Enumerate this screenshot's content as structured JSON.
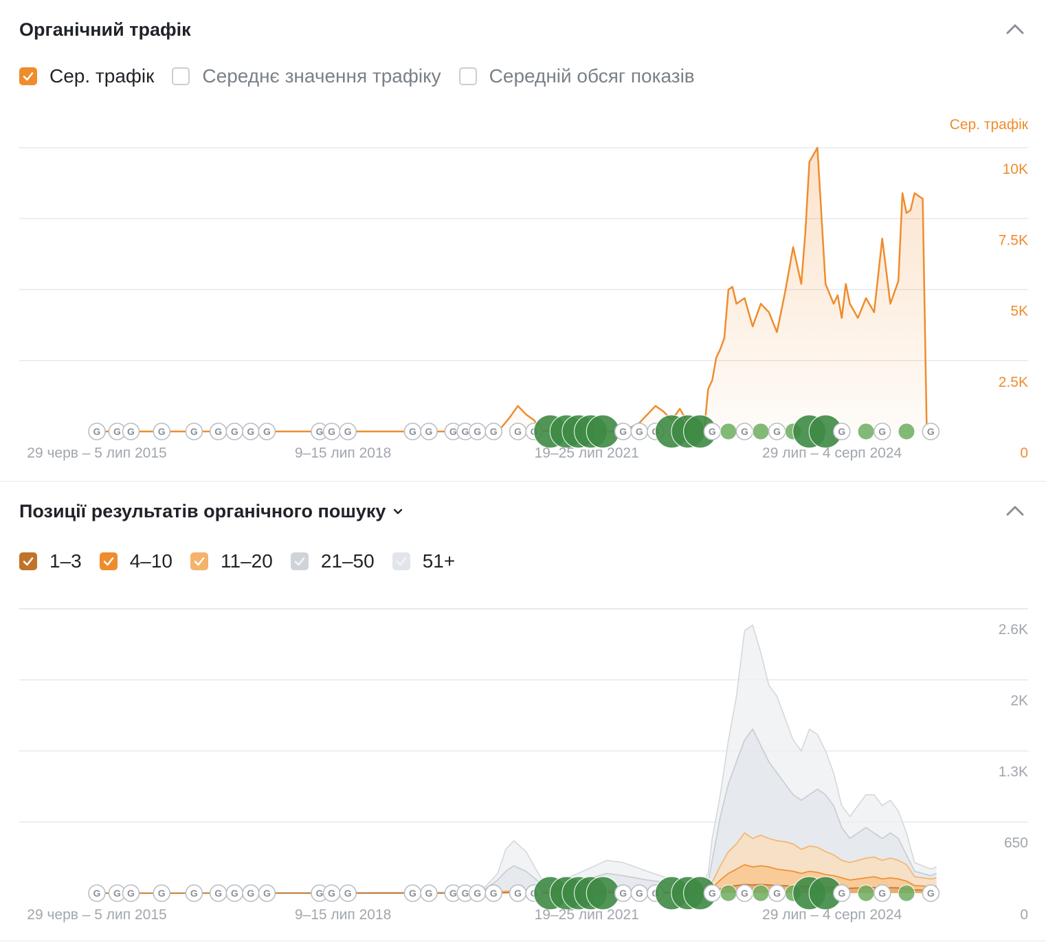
{
  "traffic": {
    "title": "Органічний трафік",
    "legend": [
      {
        "label": "Сер. трафік",
        "checked": true,
        "color": "#ef8c2c"
      },
      {
        "label": "Середнє значення трафіку",
        "checked": false
      },
      {
        "label": "Середній обсяг показів",
        "checked": false
      }
    ],
    "icons": {
      "collapse": "chevron-up-icon"
    }
  },
  "positions": {
    "title": "Позиції результатів органічного пошуку",
    "legend": [
      {
        "label": "1–3",
        "checked": true,
        "color": "#c0732a"
      },
      {
        "label": "4–10",
        "checked": true,
        "color": "#ef8c2c"
      },
      {
        "label": "11–20",
        "checked": true,
        "color": "#f5b26b"
      },
      {
        "label": "21–50",
        "checked": true,
        "color": "#cfd4da"
      },
      {
        "label": "51+",
        "checked": true,
        "color": "#e1e5e9"
      }
    ],
    "icons": {
      "collapse": "chevron-up-icon",
      "dropdown": "chevron-down-icon"
    }
  },
  "chart_data": [
    {
      "type": "area",
      "series": [
        {
          "name": "Сер. трафік",
          "color": "#ef8c2c",
          "x": [
            2015.5,
            2016.0,
            2016.5,
            2017.0,
            2017.5,
            2018.0,
            2018.5,
            2019.0,
            2019.5,
            2020.0,
            2020.4,
            2020.5,
            2020.6,
            2020.7,
            2020.8,
            2020.9,
            2021.0,
            2021.3,
            2021.5,
            2021.7,
            2021.9,
            2022.0,
            2022.2,
            2022.4,
            2022.5,
            2022.6,
            2022.7,
            2022.8,
            2022.9,
            2023.0,
            2023.05,
            2023.1,
            2023.15,
            2023.2,
            2023.25,
            2023.3,
            2023.35,
            2023.4,
            2023.5,
            2023.6,
            2023.7,
            2023.8,
            2023.9,
            2024.0,
            2024.1,
            2024.2,
            2024.25,
            2024.3,
            2024.4,
            2024.5,
            2024.6,
            2024.65,
            2024.7,
            2024.75,
            2024.8,
            2024.9,
            2025.0,
            2025.1,
            2025.2,
            2025.3,
            2025.4,
            2025.45,
            2025.5,
            2025.55,
            2025.6,
            2025.7,
            2025.75,
            2025.8,
            2025.83,
            2025.87
          ],
          "values": [
            0,
            0,
            0,
            0,
            0,
            0,
            0,
            0,
            0,
            0,
            0,
            150,
            500,
            900,
            600,
            400,
            0,
            100,
            0,
            0,
            0,
            0,
            300,
            900,
            700,
            400,
            800,
            300,
            0,
            0,
            1500,
            1800,
            2600,
            2900,
            3300,
            5000,
            5100,
            4500,
            4700,
            3700,
            4500,
            4200,
            3500,
            4900,
            6500,
            5200,
            7000,
            9500,
            10000,
            5200,
            4500,
            4800,
            4000,
            5200,
            4500,
            4000,
            4700,
            4200,
            6800,
            4500,
            5300,
            8400,
            7700,
            7800,
            8400,
            8200,
            0,
            0,
            0,
            0
          ],
          "values_note": ""
        }
      ],
      "xlabels": [
        "29 черв – 5 лип 2015",
        "9–15 лип 2018",
        "19–25 лип 2021",
        "29 лип – 4 серп 2024"
      ],
      "ylabel": "Сер. трафік",
      "yticks": [
        "0",
        "2.5K",
        "5K",
        "7.5K",
        "10K"
      ],
      "ylim": [
        0,
        10000
      ],
      "grid": true
    },
    {
      "type": "area",
      "categories_x": [
        2015.5,
        2019.9,
        2020.3,
        2020.45,
        2020.55,
        2020.65,
        2020.8,
        2021.0,
        2021.2,
        2021.5,
        2021.8,
        2022.0,
        2022.3,
        2022.5,
        2022.6,
        2022.8,
        2022.95,
        2023.05,
        2023.1,
        2023.2,
        2023.3,
        2023.4,
        2023.5,
        2023.6,
        2023.7,
        2023.8,
        2023.9,
        2024.0,
        2024.1,
        2024.2,
        2024.3,
        2024.4,
        2024.5,
        2024.6,
        2024.7,
        2024.8,
        2024.9,
        2025.0,
        2025.1,
        2025.2,
        2025.3,
        2025.4,
        2025.5,
        2025.6,
        2025.7,
        2025.8,
        2025.87
      ],
      "series": [
        {
          "name": "51+",
          "color": "#e1e5e9",
          "values": [
            0,
            10,
            60,
            180,
            400,
            480,
            380,
            120,
            100,
            200,
            300,
            280,
            200,
            150,
            120,
            80,
            60,
            180,
            500,
            900,
            1400,
            1800,
            2400,
            2450,
            2200,
            1900,
            1800,
            1600,
            1400,
            1300,
            1500,
            1450,
            1300,
            1100,
            800,
            700,
            800,
            900,
            900,
            800,
            850,
            750,
            550,
            280,
            250,
            220,
            240
          ]
        },
        {
          "name": "21–50",
          "color": "#cfd4da",
          "values": [
            0,
            5,
            40,
            120,
            200,
            250,
            200,
            80,
            60,
            120,
            180,
            160,
            120,
            100,
            90,
            60,
            40,
            100,
            300,
            700,
            1000,
            1200,
            1400,
            1500,
            1350,
            1200,
            1100,
            1000,
            900,
            850,
            900,
            950,
            900,
            800,
            600,
            500,
            550,
            600,
            550,
            500,
            550,
            500,
            350,
            200,
            180,
            160,
            180
          ]
        },
        {
          "name": "11–20",
          "color": "#f5b26b",
          "values": [
            0,
            0,
            5,
            10,
            20,
            20,
            15,
            10,
            10,
            15,
            20,
            20,
            15,
            15,
            10,
            10,
            8,
            20,
            100,
            250,
            380,
            450,
            550,
            500,
            530,
            500,
            480,
            470,
            450,
            400,
            430,
            420,
            380,
            350,
            300,
            280,
            300,
            320,
            330,
            300,
            320,
            300,
            260,
            150,
            140,
            130,
            140
          ]
        },
        {
          "name": "4–10",
          "color": "#ef8c2c",
          "values": [
            0,
            0,
            2,
            5,
            8,
            8,
            6,
            4,
            4,
            6,
            8,
            8,
            6,
            6,
            4,
            4,
            3,
            8,
            50,
            120,
            180,
            220,
            260,
            240,
            250,
            240,
            220,
            210,
            200,
            180,
            200,
            190,
            170,
            160,
            140,
            120,
            130,
            140,
            150,
            130,
            140,
            130,
            110,
            70,
            65,
            60,
            65
          ]
        },
        {
          "name": "1–3",
          "color": "#c0732a",
          "values": [
            0,
            0,
            1,
            2,
            3,
            3,
            2,
            2,
            2,
            2,
            3,
            3,
            2,
            2,
            2,
            2,
            1,
            3,
            20,
            40,
            60,
            70,
            80,
            75,
            80,
            75,
            70,
            68,
            65,
            60,
            62,
            60,
            55,
            52,
            48,
            45,
            48,
            50,
            52,
            48,
            50,
            48,
            40,
            30,
            28,
            26,
            28
          ]
        }
      ],
      "xlabels": [
        "29 черв – 5 лип 2015",
        "9–15 лип 2018",
        "19–25 лип 2021",
        "29 лип – 4 серп 2024"
      ],
      "yticks": [
        "0",
        "650",
        "1.3K",
        "2K",
        "2.6K"
      ],
      "ylim": [
        0,
        2600
      ],
      "grid": true
    }
  ]
}
